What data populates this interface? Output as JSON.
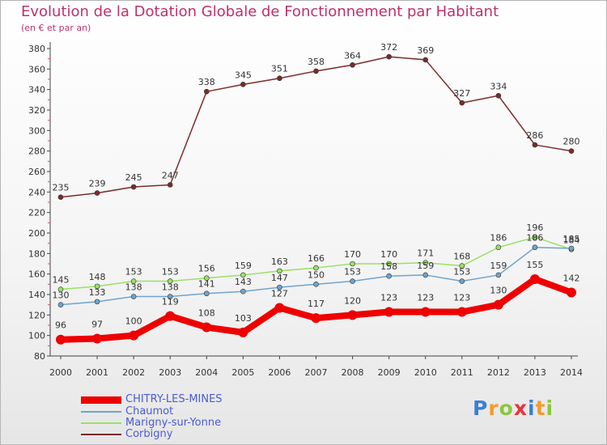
{
  "title": "Evolution de la Dotation Globale de Fonctionnement par Habitant",
  "subtitle": "(en € et par an)",
  "logo": {
    "letters": [
      "P",
      "r",
      "o",
      "x",
      "i",
      "t",
      "i"
    ],
    "colors": [
      "#3b7fd4",
      "#f59a2c",
      "#8cc63f",
      "#e8333b",
      "#3b7fd4",
      "#f59a2c",
      "#8cc63f"
    ]
  },
  "chart_data": {
    "type": "line",
    "x": [
      2000,
      2001,
      2002,
      2003,
      2004,
      2005,
      2006,
      2007,
      2008,
      2009,
      2010,
      2011,
      2012,
      2013,
      2014
    ],
    "ylim": [
      80,
      380
    ],
    "ytick_step": 20,
    "grid": false,
    "legend_position": "bottom-left",
    "series": [
      {
        "name": "Corbigny",
        "color": "#7b2b2b",
        "values": [
          235,
          239,
          245,
          247,
          338,
          345,
          351,
          358,
          364,
          372,
          369,
          327,
          334,
          286,
          280
        ],
        "labels": true,
        "width": 1.5,
        "marker": 3
      },
      {
        "name": "Marigny-sur-Yonne",
        "color": "#99e064",
        "values": [
          145,
          148,
          153,
          153,
          156,
          159,
          163,
          166,
          170,
          170,
          171,
          168,
          186,
          196,
          184
        ],
        "labels": true,
        "width": 1.5,
        "marker": 3
      },
      {
        "name": "Chaumot",
        "color": "#6fa3cf",
        "values": [
          130,
          133,
          138,
          138,
          141,
          143,
          147,
          150,
          153,
          158,
          159,
          153,
          159,
          186,
          185
        ],
        "labels": true,
        "width": 1.5,
        "marker": 3
      },
      {
        "name": "CHITRY-LES-MINES",
        "color": "#ee0000",
        "values": [
          96,
          97,
          100,
          119,
          108,
          103,
          127,
          117,
          120,
          123,
          123,
          123,
          130,
          155,
          142
        ],
        "labels": true,
        "width": 8,
        "marker": 6
      }
    ]
  }
}
